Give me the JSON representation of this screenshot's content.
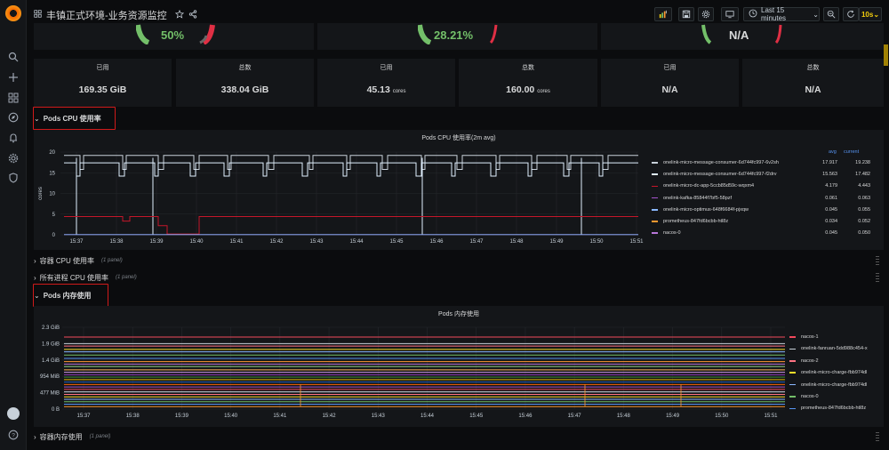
{
  "dashboard": {
    "title": "丰镇正式环境-业务资源监控"
  },
  "toolbar": {
    "time_range": "Last 15 minutes",
    "refresh": "10s"
  },
  "gauges": [
    {
      "value": "50%"
    },
    {
      "value": "28.21%"
    },
    {
      "value": "N/A"
    }
  ],
  "stats": [
    {
      "label": "已用",
      "value": "169.35 GiB",
      "unit": ""
    },
    {
      "label": "总数",
      "value": "338.04 GiB",
      "unit": ""
    },
    {
      "label": "已用",
      "value": "45.13",
      "unit": "cores"
    },
    {
      "label": "总数",
      "value": "160.00",
      "unit": "cores"
    },
    {
      "label": "已用",
      "value": "N/A",
      "unit": ""
    },
    {
      "label": "总数",
      "value": "N/A",
      "unit": ""
    }
  ],
  "rows": {
    "pods_cpu": {
      "label": "Pods CPU 使用率"
    },
    "container_cpu": {
      "label": "容器 CPU 使用率",
      "panels": "(1 panel)"
    },
    "all_process_cpu": {
      "label": "所有进程 CPU 使用率",
      "panels": "(1 panel)"
    },
    "pods_mem": {
      "label": "Pods 内存使用"
    },
    "container_mem": {
      "label": "容器内存使用",
      "panels": "(1 panel)"
    }
  },
  "cpu_panel": {
    "title": "Pods CPU 使用率(2m avg)",
    "ylabel": "cores",
    "legend_head": {
      "avg": "avg",
      "current": "current"
    }
  },
  "mem_panel": {
    "title": "Pods 内存使用"
  },
  "chart_data": [
    {
      "type": "line",
      "title": "Pods CPU 使用率(2m avg)",
      "ylabel": "cores",
      "ylim": [
        0,
        20
      ],
      "yticks": [
        "0",
        "5",
        "10",
        "15",
        "20"
      ],
      "categories": [
        "15:37",
        "15:38",
        "15:39",
        "15:40",
        "15:41",
        "15:42",
        "15:43",
        "15:44",
        "15:45",
        "15:46",
        "15:47",
        "15:48",
        "15:49",
        "15:50",
        "15:51"
      ],
      "series": [
        {
          "name": "onelink-micro-message-consumer-6d744fc997-6v2sh",
          "avg": "17.917",
          "current": "19.238",
          "color": "#c7d0d9"
        },
        {
          "name": "onelink-micro-message-consumer-6d744fc997-f2drv",
          "avg": "15.563",
          "current": "17.482",
          "color": "#e0f0ff"
        },
        {
          "name": "onelink-micro-dc-app-5ccb85d59c-wqxm4",
          "avg": "4.179",
          "current": "4.443",
          "color": "#c4162a"
        },
        {
          "name": "onelink-kafka-85844f7bf5-58pzf",
          "avg": "0.061",
          "current": "0.063",
          "color": "#a352cc"
        },
        {
          "name": "onelink-micro-optimus-648f6684f-pjxqw",
          "avg": "0.045",
          "current": "0.055",
          "color": "#8ab8ff"
        },
        {
          "name": "prometheus-847fd6bcbb-htl8z",
          "avg": "0.034",
          "current": "0.052",
          "color": "#ff9830"
        },
        {
          "name": "nacos-0",
          "avg": "0.045",
          "current": "0.050",
          "color": "#b877d9"
        }
      ]
    },
    {
      "type": "line",
      "title": "Pods 内存使用",
      "yticks": [
        "0 B",
        "477 MiB",
        "954 MiB",
        "1.4 GiB",
        "1.9 GiB",
        "2.3 GiB"
      ],
      "categories": [
        "15:37",
        "15:38",
        "15:39",
        "15:40",
        "15:41",
        "15:42",
        "15:43",
        "15:44",
        "15:45",
        "15:46",
        "15:47",
        "15:48",
        "15:49",
        "15:50",
        "15:51"
      ],
      "series": [
        {
          "name": "nacos-1",
          "color": "#f2495c"
        },
        {
          "name": "onelink-fanruan-5dd988c454-x",
          "color": "#c7d0d9"
        },
        {
          "name": "nacos-2",
          "color": "#ff7383"
        },
        {
          "name": "onelink-micro-charge-fbb974dl",
          "color": "#fade2a"
        },
        {
          "name": "onelink-micro-charge-fbb974dl",
          "color": "#8ab8ff"
        },
        {
          "name": "nacos-0",
          "color": "#73bf69"
        },
        {
          "name": "prometheus-847fd6bcbb-htl8z",
          "color": "#5794f2"
        }
      ]
    }
  ]
}
